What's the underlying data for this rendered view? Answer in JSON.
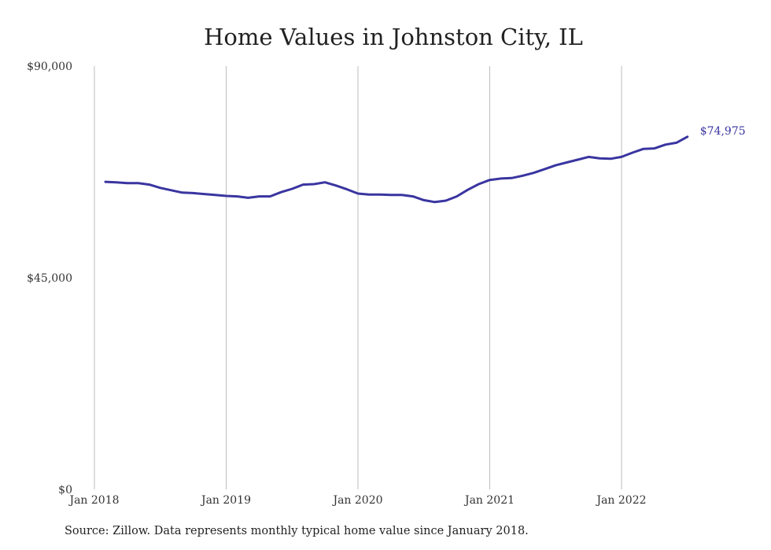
{
  "chart_data": {
    "type": "line",
    "title": "Home Values in Johnston City, IL",
    "xlabel": "",
    "ylabel": "",
    "ylim": [
      0,
      90000
    ],
    "y_ticks": [
      "$0",
      "$45,000",
      "$90,000"
    ],
    "y_tick_values": [
      0,
      45000,
      90000
    ],
    "x_ticks": [
      "Jan 2018",
      "Jan 2019",
      "Jan 2020",
      "Jan 2021",
      "Jan 2022"
    ],
    "x_tick_values": [
      "2018-01",
      "2019-01",
      "2020-01",
      "2021-01",
      "2022-01"
    ],
    "grid": "vertical",
    "color": "#3a35a0",
    "end_label": "$74,975",
    "series": [
      {
        "x": [
          "2018-02",
          "2018-03",
          "2018-04",
          "2018-05",
          "2018-06",
          "2018-07",
          "2018-08",
          "2018-09",
          "2018-10",
          "2018-11",
          "2018-12",
          "2019-01",
          "2019-02",
          "2019-03",
          "2019-04",
          "2019-05",
          "2019-06",
          "2019-07",
          "2019-08",
          "2019-09",
          "2019-10",
          "2019-11",
          "2019-12",
          "2020-01",
          "2020-02",
          "2020-03",
          "2020-04",
          "2020-05",
          "2020-06",
          "2020-07",
          "2020-08",
          "2020-09",
          "2020-10",
          "2020-11",
          "2020-12",
          "2021-01",
          "2021-02",
          "2021-03",
          "2021-04",
          "2021-05",
          "2021-06",
          "2021-07",
          "2021-08",
          "2021-09",
          "2021-10",
          "2021-11",
          "2021-12",
          "2022-01",
          "2022-02",
          "2022-03",
          "2022-04",
          "2022-05",
          "2022-06",
          "2022-07"
        ],
        "y": [
          65400,
          65300,
          65100,
          65100,
          64800,
          64100,
          63600,
          63100,
          63000,
          62800,
          62600,
          62400,
          62300,
          62000,
          62300,
          62300,
          63200,
          63900,
          64800,
          64900,
          65300,
          64600,
          63800,
          62900,
          62700,
          62700,
          62600,
          62600,
          62300,
          61500,
          61100,
          61400,
          62300,
          63700,
          64900,
          65800,
          66100,
          66200,
          66700,
          67300,
          68100,
          68900,
          69500,
          70100,
          70700,
          70400,
          70300,
          70700,
          71600,
          72400,
          72500,
          73300,
          73700,
          74975
        ]
      }
    ]
  },
  "source": "Source: Zillow. Data represents monthly typical home value since January 2018."
}
